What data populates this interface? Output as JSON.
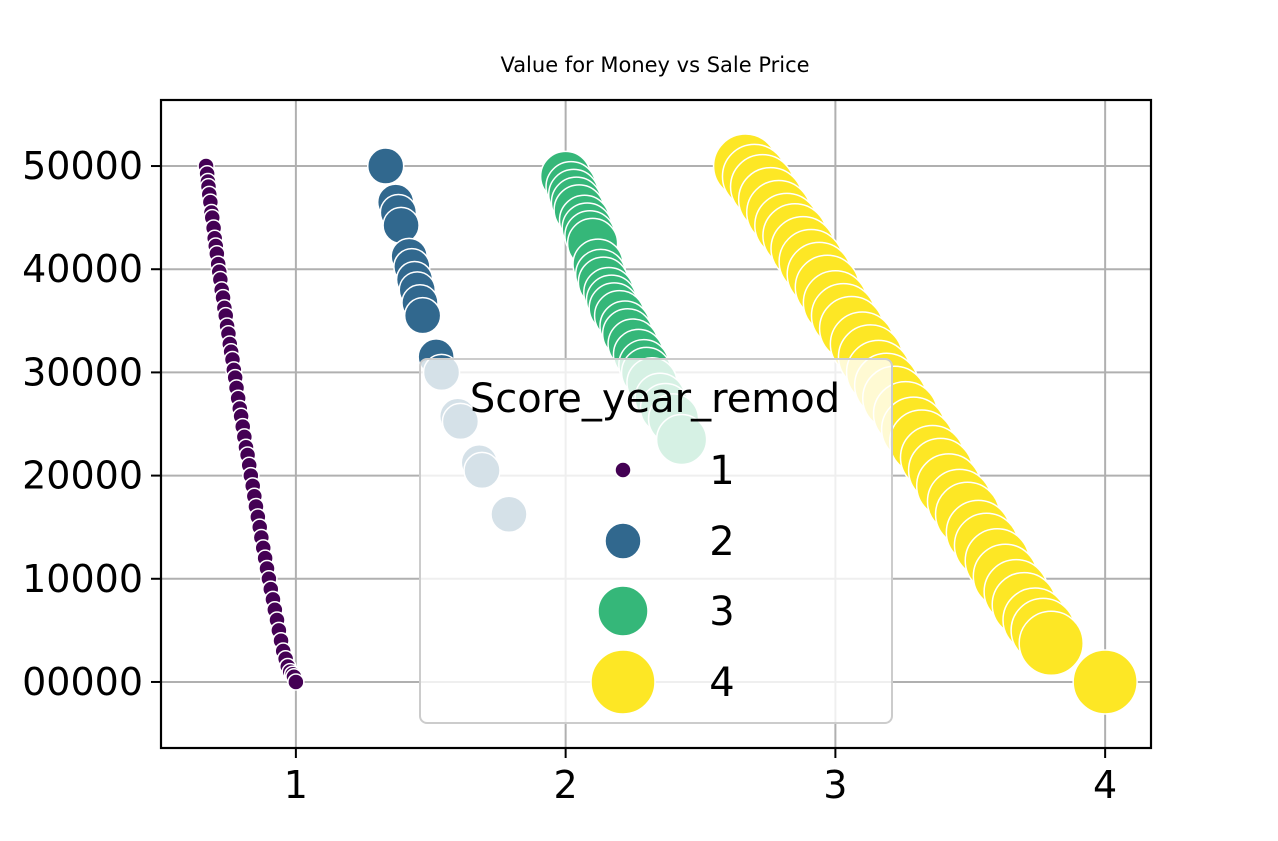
{
  "chart_data": {
    "type": "scatter",
    "title": "Value for Money vs Sale Price",
    "xlabel": "",
    "ylabel": "",
    "xlim": [
      0.5,
      4.17
    ],
    "ylim": [
      -0.256,
      2.256
    ],
    "grid": true,
    "x_ticks": [
      {
        "value": 1,
        "label": "1"
      },
      {
        "value": 2,
        "label": "2"
      },
      {
        "value": 3,
        "label": "3"
      },
      {
        "value": 4,
        "label": "4"
      }
    ],
    "y_ticks": [
      {
        "value": 0,
        "label": "00000"
      },
      {
        "value": 0.4,
        "label": "10000"
      },
      {
        "value": 0.8,
        "label": "20000"
      },
      {
        "value": 1.2,
        "label": "30000"
      },
      {
        "value": 1.6,
        "label": "40000"
      },
      {
        "value": 2.0,
        "label": "50000"
      }
    ],
    "legend": {
      "title": "Score_year_remod",
      "placement": "center",
      "entries": [
        "1",
        "2",
        "3",
        "4"
      ]
    },
    "series": [
      {
        "name": "1",
        "color": "#440154",
        "size": 8,
        "points": [
          [
            0.667,
            2.0
          ],
          [
            0.671,
            1.97
          ],
          [
            0.674,
            1.94
          ],
          [
            0.676,
            1.92
          ],
          [
            0.679,
            1.89
          ],
          [
            0.683,
            1.86
          ],
          [
            0.687,
            1.82
          ],
          [
            0.69,
            1.8
          ],
          [
            0.695,
            1.76
          ],
          [
            0.699,
            1.72
          ],
          [
            0.703,
            1.69
          ],
          [
            0.707,
            1.66
          ],
          [
            0.712,
            1.62
          ],
          [
            0.716,
            1.59
          ],
          [
            0.72,
            1.56
          ],
          [
            0.725,
            1.52
          ],
          [
            0.73,
            1.49
          ],
          [
            0.735,
            1.45
          ],
          [
            0.74,
            1.42
          ],
          [
            0.745,
            1.38
          ],
          [
            0.75,
            1.35
          ],
          [
            0.755,
            1.31
          ],
          [
            0.76,
            1.28
          ],
          [
            0.765,
            1.25
          ],
          [
            0.77,
            1.21
          ],
          [
            0.775,
            1.18
          ],
          [
            0.78,
            1.14
          ],
          [
            0.786,
            1.1
          ],
          [
            0.792,
            1.06
          ],
          [
            0.797,
            1.03
          ],
          [
            0.803,
            0.99
          ],
          [
            0.809,
            0.95
          ],
          [
            0.815,
            0.91
          ],
          [
            0.821,
            0.88
          ],
          [
            0.827,
            0.84
          ],
          [
            0.833,
            0.8
          ],
          [
            0.84,
            0.76
          ],
          [
            0.846,
            0.72
          ],
          [
            0.852,
            0.68
          ],
          [
            0.859,
            0.64
          ],
          [
            0.866,
            0.6
          ],
          [
            0.872,
            0.56
          ],
          [
            0.879,
            0.52
          ],
          [
            0.886,
            0.48
          ],
          [
            0.893,
            0.44
          ],
          [
            0.9,
            0.4
          ],
          [
            0.907,
            0.36
          ],
          [
            0.915,
            0.32
          ],
          [
            0.922,
            0.28
          ],
          [
            0.93,
            0.24
          ],
          [
            0.937,
            0.2
          ],
          [
            0.945,
            0.16
          ],
          [
            0.953,
            0.12
          ],
          [
            0.962,
            0.09
          ],
          [
            0.97,
            0.06
          ],
          [
            0.979,
            0.04
          ],
          [
            0.988,
            0.03
          ],
          [
            0.993,
            0.02
          ],
          [
            1.0,
            0.0
          ]
        ]
      },
      {
        "name": "2",
        "color": "#31688e",
        "size": 18,
        "points": [
          [
            1.333,
            2.0
          ],
          [
            1.37,
            1.86
          ],
          [
            1.38,
            1.82
          ],
          [
            1.39,
            1.77
          ],
          [
            1.42,
            1.65
          ],
          [
            1.43,
            1.61
          ],
          [
            1.44,
            1.56
          ],
          [
            1.45,
            1.52
          ],
          [
            1.46,
            1.47
          ],
          [
            1.47,
            1.42
          ],
          [
            1.52,
            1.26
          ],
          [
            1.54,
            1.2
          ],
          [
            1.6,
            1.03
          ],
          [
            1.61,
            1.01
          ],
          [
            1.68,
            0.85
          ],
          [
            1.69,
            0.82
          ],
          [
            1.79,
            0.65
          ]
        ]
      },
      {
        "name": "3",
        "color": "#35b779",
        "size": 25,
        "points": [
          [
            2.0,
            1.96
          ],
          [
            2.02,
            1.92
          ],
          [
            2.03,
            1.89
          ],
          [
            2.04,
            1.86
          ],
          [
            2.05,
            1.83
          ],
          [
            2.07,
            1.79
          ],
          [
            2.08,
            1.76
          ],
          [
            2.09,
            1.73
          ],
          [
            2.1,
            1.7
          ],
          [
            2.12,
            1.62
          ],
          [
            2.13,
            1.58
          ],
          [
            2.14,
            1.55
          ],
          [
            2.16,
            1.51
          ],
          [
            2.17,
            1.48
          ],
          [
            2.18,
            1.45
          ],
          [
            2.2,
            1.42
          ],
          [
            2.22,
            1.38
          ],
          [
            2.23,
            1.35
          ],
          [
            2.25,
            1.31
          ],
          [
            2.27,
            1.27
          ],
          [
            2.29,
            1.23
          ],
          [
            2.3,
            1.2
          ],
          [
            2.32,
            1.16
          ],
          [
            2.35,
            1.1
          ],
          [
            2.37,
            1.06
          ],
          [
            2.4,
            1.02
          ],
          [
            2.43,
            0.94
          ]
        ]
      },
      {
        "name": "4",
        "color": "#fde725",
        "size": 32,
        "points": [
          [
            2.667,
            2.0
          ],
          [
            2.7,
            1.96
          ],
          [
            2.73,
            1.92
          ],
          [
            2.76,
            1.87
          ],
          [
            2.79,
            1.82
          ],
          [
            2.82,
            1.77
          ],
          [
            2.85,
            1.73
          ],
          [
            2.88,
            1.68
          ],
          [
            2.91,
            1.63
          ],
          [
            2.94,
            1.58
          ],
          [
            2.97,
            1.53
          ],
          [
            3.0,
            1.47
          ],
          [
            3.03,
            1.42
          ],
          [
            3.06,
            1.37
          ],
          [
            3.1,
            1.31
          ],
          [
            3.13,
            1.26
          ],
          [
            3.16,
            1.2
          ],
          [
            3.19,
            1.15
          ],
          [
            3.22,
            1.1
          ],
          [
            3.26,
            1.04
          ],
          [
            3.29,
            0.98
          ],
          [
            3.32,
            0.93
          ],
          [
            3.36,
            0.87
          ],
          [
            3.39,
            0.82
          ],
          [
            3.42,
            0.76
          ],
          [
            3.46,
            0.7
          ],
          [
            3.49,
            0.65
          ],
          [
            3.53,
            0.58
          ],
          [
            3.56,
            0.53
          ],
          [
            3.6,
            0.47
          ],
          [
            3.63,
            0.41
          ],
          [
            3.67,
            0.35
          ],
          [
            3.7,
            0.3
          ],
          [
            3.74,
            0.24
          ],
          [
            3.77,
            0.2
          ],
          [
            3.8,
            0.15
          ],
          [
            4.0,
            0.0
          ]
        ]
      }
    ]
  }
}
